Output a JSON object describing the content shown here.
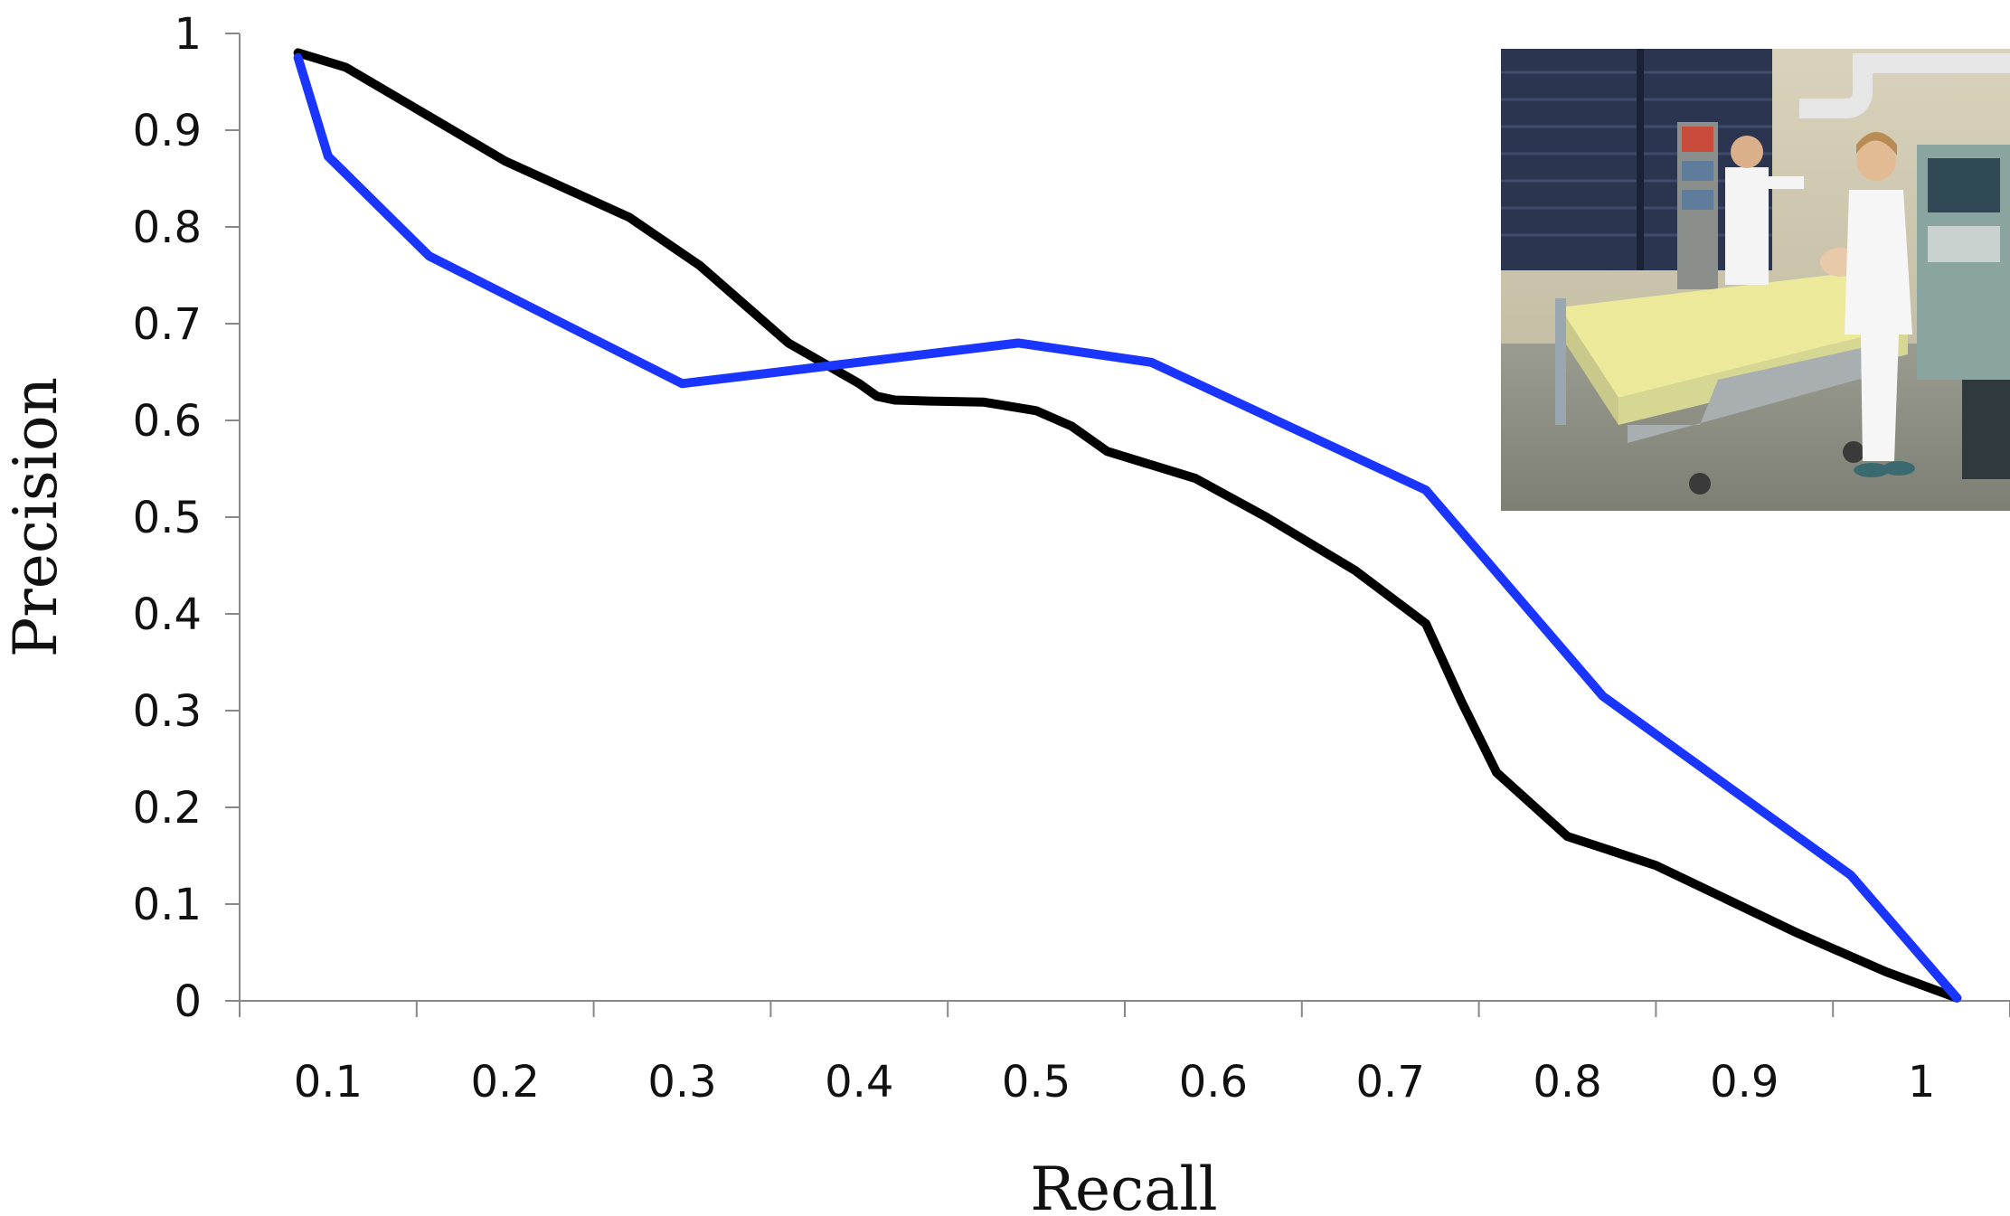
{
  "chart_data": {
    "type": "line",
    "xlabel": "Recall",
    "ylabel": "Precision",
    "xlim": [
      0.05,
      1.05
    ],
    "ylim": [
      0,
      1
    ],
    "x_ticks": [
      "0.1",
      "0.2",
      "0.3",
      "0.4",
      "0.5",
      "0.6",
      "0.7",
      "0.8",
      "0.9",
      "1"
    ],
    "y_ticks": [
      "0",
      "0.1",
      "0.2",
      "0.3",
      "0.4",
      "0.5",
      "0.6",
      "0.7",
      "0.8",
      "0.9",
      "1"
    ],
    "grid": false,
    "legend": "none",
    "series": [
      {
        "color": "#000000",
        "x": [
          0.083,
          0.11,
          0.15,
          0.2,
          0.27,
          0.31,
          0.36,
          0.4,
          0.41,
          0.42,
          0.44,
          0.47,
          0.5,
          0.52,
          0.54,
          0.59,
          0.63,
          0.68,
          0.72,
          0.74,
          0.76,
          0.8,
          0.85,
          0.93,
          0.98,
          1.02
        ],
        "y": [
          0.98,
          0.965,
          0.922,
          0.868,
          0.81,
          0.76,
          0.68,
          0.638,
          0.625,
          0.621,
          0.62,
          0.619,
          0.61,
          0.594,
          0.568,
          0.54,
          0.5,
          0.445,
          0.39,
          0.31,
          0.236,
          0.17,
          0.14,
          0.07,
          0.03,
          0.003
        ]
      },
      {
        "color": "#1a35ff",
        "x": [
          0.083,
          0.1,
          0.157,
          0.3,
          0.49,
          0.565,
          0.72,
          0.82,
          0.96,
          1.02
        ],
        "y": [
          0.975,
          0.873,
          0.77,
          0.638,
          0.68,
          0.66,
          0.528,
          0.315,
          0.13,
          0.003
        ]
      }
    ]
  },
  "inset_image": {
    "name": "icu-nurses-photo",
    "colors": {
      "wall": "#cfc8b0",
      "window": "#2b3550",
      "floor": "#8f9185",
      "sheet": "#ecea9a",
      "uniform": "#f4f4f4",
      "equipment": "#8aa5a0"
    }
  }
}
